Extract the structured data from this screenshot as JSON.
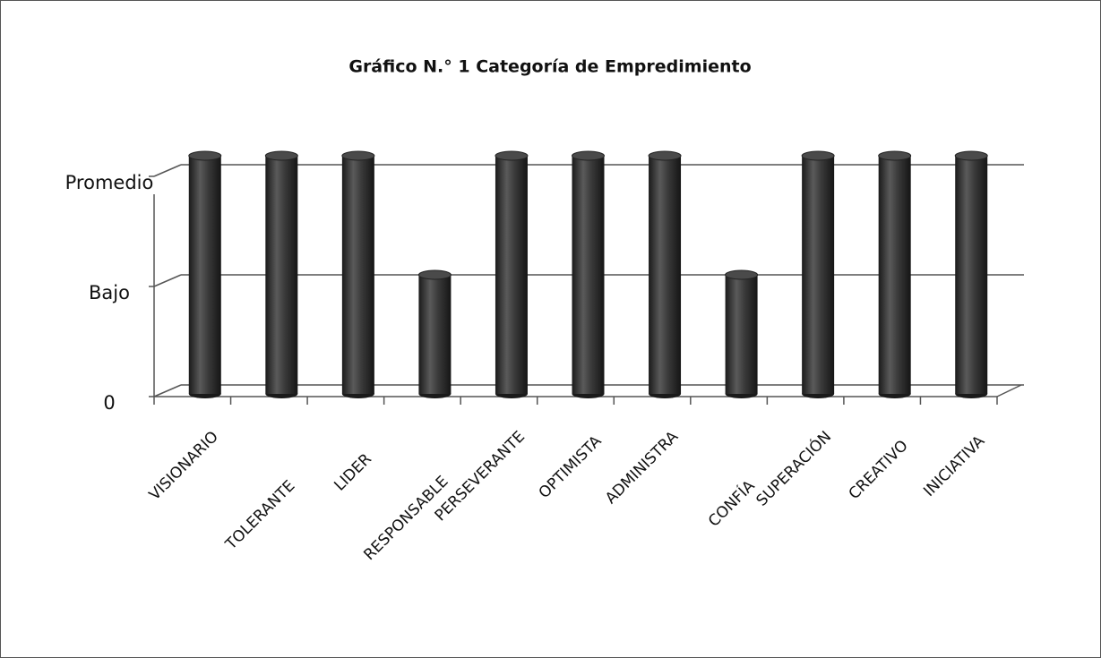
{
  "chart_data": {
    "type": "bar",
    "title": "Gráfico N.° 1 Categoría de Empredimiento",
    "categories": [
      "VISIONARIO",
      "TOLERANTE",
      "LIDER",
      "RESPONSABLE",
      "PERSEVERANTE",
      "OPTIMISTA",
      "ADMINISTRA",
      "CONFÍA",
      "SUPERACIÓN",
      "CREATIVO",
      "INICIATIVA"
    ],
    "values": [
      2,
      2,
      2,
      1,
      2,
      2,
      2,
      1,
      2,
      2,
      2
    ],
    "color": "#3a3a3a",
    "ylim": [
      0,
      2
    ],
    "yticks": [
      0,
      {
        "value": 1,
        "label": "Bajo"
      },
      {
        "value": 2,
        "label": "Promedio"
      }
    ],
    "grid": true
  }
}
